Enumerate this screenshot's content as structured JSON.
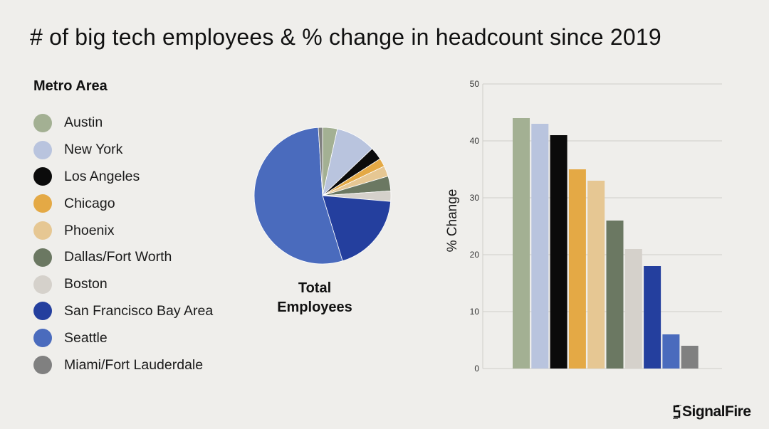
{
  "title": "# of big tech employees & % change in headcount since 2019",
  "legend": {
    "title": "Metro Area"
  },
  "pie_caption": {
    "line1": "Total",
    "line2": "Employees"
  },
  "logo": {
    "text": "SignalFire",
    "icon": "signalfire-mark-icon"
  },
  "colors": {
    "background": "#efeeeb",
    "gridline": "#cfcdc8"
  },
  "chart_data": [
    {
      "type": "pie",
      "title": "",
      "caption": "Total Employees",
      "categories": [
        "Austin",
        "New York",
        "Los Angeles",
        "Chicago",
        "Phoenix",
        "Dallas/Fort Worth",
        "Boston",
        "San Francisco Bay Area",
        "Seattle",
        "Miami/Fort Lauderdale"
      ],
      "values": [
        3.5,
        9.5,
        3,
        2,
        2.5,
        3.5,
        2.5,
        19,
        54,
        1
      ],
      "colors": [
        "#a3b093",
        "#b9c4de",
        "#0b0b0b",
        "#e4a945",
        "#e6c793",
        "#6b7862",
        "#d5d1cb",
        "#243f9e",
        "#4a6bbd",
        "#808080"
      ],
      "start_angle_deg": 0,
      "direction": "clockwise"
    },
    {
      "type": "bar",
      "categories": [
        "Austin",
        "New York",
        "Los Angeles",
        "Chicago",
        "Phoenix",
        "Dallas/Fort Worth",
        "Boston",
        "San Francisco Bay Area",
        "Seattle",
        "Miami/Fort Lauderdale"
      ],
      "values": [
        44,
        43,
        41,
        35,
        33,
        26,
        21,
        18,
        6,
        4
      ],
      "colors": [
        "#a3b093",
        "#b9c4de",
        "#0b0b0b",
        "#e4a945",
        "#e6c793",
        "#6b7862",
        "#d5d1cb",
        "#243f9e",
        "#4a6bbd",
        "#808080"
      ],
      "xlabel": "",
      "ylabel": "% Change",
      "ylim": [
        0,
        50
      ],
      "yticks": [
        0,
        10,
        20,
        30,
        40,
        50
      ],
      "grid": true,
      "legend": "shared, left"
    }
  ]
}
